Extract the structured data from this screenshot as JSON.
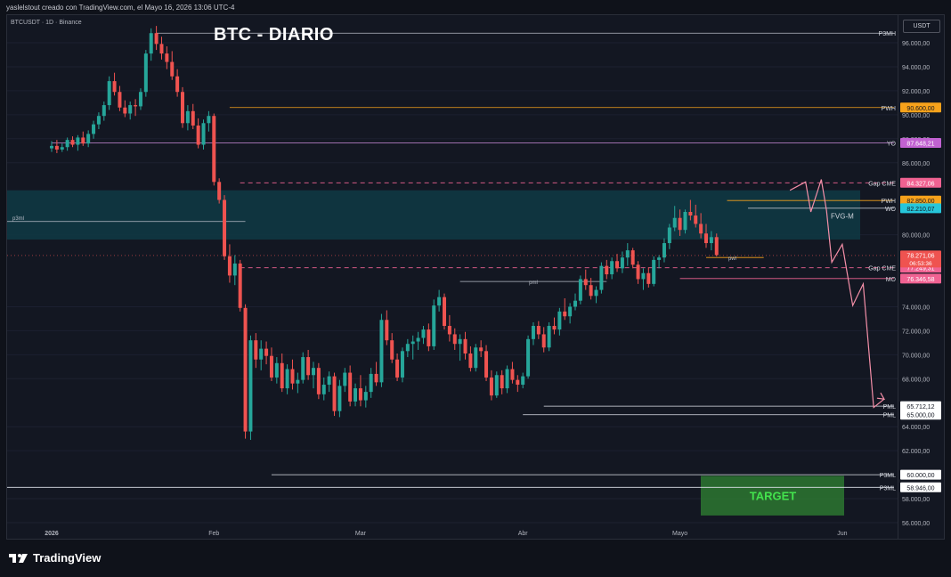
{
  "header": {
    "text": "yaslelstout creado con TradingView.com, el Mayo 16, 2026 13:06 UTC-4"
  },
  "symbol": "BTCUSDT · 1D · Binance",
  "title": "BTC - DIARIO",
  "currency": "USDT",
  "footer": {
    "brand": "TradingView"
  },
  "colors": {
    "up": "#26a69a",
    "down": "#ef5350",
    "background": "#131722",
    "fvg_zone": "#0f3a44",
    "target_zone": "#2e7d32"
  },
  "chart_data": {
    "type": "candlestick",
    "title": "BTC - DIARIO",
    "ylim": [
      55000,
      97500
    ],
    "y_ticks": [
      "96.000,00",
      "94.000,00",
      "92.000,00",
      "90.000,00",
      "88.000,00",
      "86.000,00",
      "80.000,00",
      "74.000,00",
      "72.000,00",
      "70.000,00",
      "68.000,00",
      "64.000,00",
      "62.000,00",
      "58.000,00",
      "56.000,00"
    ],
    "x_ticks": [
      {
        "label": "2026",
        "day": 1
      },
      {
        "label": "Feb",
        "day": 32
      },
      {
        "label": "Mar",
        "day": 60
      },
      {
        "label": "Abr",
        "day": 91
      },
      {
        "label": "Mayo",
        "day": 121
      },
      {
        "label": "Jun",
        "day": 152
      }
    ],
    "candles_ohlc_from_day_1": [
      [
        87200,
        87800,
        86900,
        87400
      ],
      [
        87400,
        87900,
        86800,
        87100
      ],
      [
        87100,
        87600,
        86900,
        87300
      ],
      [
        87300,
        88100,
        87000,
        87900
      ],
      [
        87900,
        88200,
        87300,
        87500
      ],
      [
        87500,
        88300,
        87000,
        88100
      ],
      [
        88100,
        88600,
        87400,
        87600
      ],
      [
        87600,
        88700,
        87300,
        88400
      ],
      [
        88400,
        89500,
        88000,
        89200
      ],
      [
        89200,
        90200,
        88800,
        89900
      ],
      [
        89900,
        91100,
        89500,
        90800
      ],
      [
        90800,
        93200,
        90400,
        92800
      ],
      [
        92800,
        93500,
        91600,
        91900
      ],
      [
        91900,
        92400,
        90300,
        90600
      ],
      [
        90600,
        91200,
        89800,
        90100
      ],
      [
        90100,
        91100,
        89600,
        90800
      ],
      [
        90800,
        91300,
        89900,
        90700
      ],
      [
        90700,
        92200,
        90400,
        91900
      ],
      [
        91900,
        95400,
        91500,
        95100
      ],
      [
        95100,
        97200,
        94500,
        96800
      ],
      [
        96800,
        97400,
        95400,
        95900
      ],
      [
        95900,
        96500,
        94600,
        95100
      ],
      [
        95100,
        95700,
        93800,
        94400
      ],
      [
        94400,
        95300,
        92900,
        93200
      ],
      [
        93200,
        93800,
        91500,
        91900
      ],
      [
        91900,
        92300,
        88900,
        89300
      ],
      [
        89300,
        90800,
        88700,
        90300
      ],
      [
        90300,
        90900,
        88800,
        89100
      ],
      [
        89100,
        89700,
        87200,
        87500
      ],
      [
        87500,
        89600,
        87100,
        89300
      ],
      [
        89300,
        90300,
        88600,
        89900
      ],
      [
        89900,
        90100,
        84100,
        84400
      ],
      [
        84400,
        84700,
        82600,
        82900
      ],
      [
        82900,
        83300,
        77900,
        78200
      ],
      [
        78200,
        79200,
        76000,
        76600
      ],
      [
        76600,
        78300,
        75800,
        77600
      ],
      [
        77600,
        77900,
        73600,
        73900
      ],
      [
        73900,
        74200,
        63000,
        63600
      ],
      [
        63600,
        71600,
        62900,
        71200
      ],
      [
        71200,
        71800,
        68900,
        69600
      ],
      [
        69600,
        71200,
        68700,
        70500
      ],
      [
        70500,
        71100,
        69200,
        69900
      ],
      [
        69900,
        70600,
        67800,
        68100
      ],
      [
        68100,
        69800,
        67600,
        69300
      ],
      [
        69300,
        70100,
        66900,
        67200
      ],
      [
        67200,
        69200,
        66700,
        68800
      ],
      [
        68800,
        69600,
        67100,
        67600
      ],
      [
        67600,
        68500,
        66800,
        67900
      ],
      [
        67900,
        70200,
        67600,
        69800
      ],
      [
        69800,
        70400,
        67900,
        68300
      ],
      [
        68300,
        69400,
        67200,
        68900
      ],
      [
        68900,
        69300,
        66300,
        66700
      ],
      [
        66700,
        68100,
        66200,
        67500
      ],
      [
        67500,
        68600,
        66900,
        68200
      ],
      [
        68200,
        68500,
        64900,
        65300
      ],
      [
        65300,
        67900,
        64800,
        67400
      ],
      [
        67400,
        68900,
        66900,
        68500
      ],
      [
        68500,
        69100,
        65700,
        66100
      ],
      [
        66100,
        67600,
        65700,
        67200
      ],
      [
        67200,
        68300,
        65700,
        66200
      ],
      [
        66200,
        67400,
        65600,
        66900
      ],
      [
        66900,
        68900,
        66400,
        68400
      ],
      [
        68400,
        69400,
        67400,
        67700
      ],
      [
        67700,
        73400,
        67300,
        72900
      ],
      [
        72900,
        73700,
        70800,
        71200
      ],
      [
        71200,
        71800,
        69300,
        69600
      ],
      [
        69600,
        70100,
        67800,
        68100
      ],
      [
        68100,
        70600,
        67700,
        70300
      ],
      [
        70300,
        71300,
        69800,
        70900
      ],
      [
        70900,
        71600,
        69600,
        71100
      ],
      [
        71100,
        71900,
        70400,
        71400
      ],
      [
        71400,
        72400,
        70900,
        72100
      ],
      [
        72100,
        72600,
        70300,
        70700
      ],
      [
        70700,
        74600,
        70400,
        74100
      ],
      [
        74100,
        75400,
        73600,
        74800
      ],
      [
        74800,
        75100,
        72100,
        72400
      ],
      [
        72400,
        73300,
        71100,
        71700
      ],
      [
        71700,
        72200,
        70400,
        70900
      ],
      [
        70900,
        71700,
        69500,
        71300
      ],
      [
        71300,
        71900,
        69600,
        70100
      ],
      [
        70100,
        70700,
        68600,
        68900
      ],
      [
        68900,
        70900,
        68600,
        70600
      ],
      [
        70600,
        71200,
        69800,
        70300
      ],
      [
        70300,
        70800,
        67800,
        68100
      ],
      [
        68100,
        68700,
        66200,
        66600
      ],
      [
        66600,
        68600,
        66400,
        68300
      ],
      [
        68300,
        68700,
        66700,
        67200
      ],
      [
        67200,
        69100,
        66800,
        68800
      ],
      [
        68800,
        69400,
        67600,
        67900
      ],
      [
        67900,
        68300,
        66900,
        67500
      ],
      [
        67500,
        68500,
        67200,
        68200
      ],
      [
        68200,
        71600,
        68000,
        71300
      ],
      [
        71300,
        72700,
        70800,
        72400
      ],
      [
        72400,
        72800,
        71300,
        71700
      ],
      [
        71700,
        72300,
        70200,
        70600
      ],
      [
        70600,
        72700,
        70300,
        72400
      ],
      [
        72400,
        73100,
        71700,
        72100
      ],
      [
        72100,
        73900,
        71600,
        73600
      ],
      [
        73600,
        74700,
        72900,
        73200
      ],
      [
        73200,
        74300,
        72600,
        74000
      ],
      [
        74000,
        75100,
        73700,
        74500
      ],
      [
        74500,
        76600,
        74200,
        76300
      ],
      [
        76300,
        77100,
        75400,
        75800
      ],
      [
        75800,
        76400,
        74600,
        74900
      ],
      [
        74900,
        75700,
        74300,
        75400
      ],
      [
        75400,
        77700,
        75100,
        77400
      ],
      [
        77400,
        77900,
        76300,
        76700
      ],
      [
        76700,
        78100,
        76300,
        77800
      ],
      [
        77800,
        78400,
        76900,
        77200
      ],
      [
        77200,
        78600,
        76800,
        78100
      ],
      [
        78100,
        79300,
        77400,
        78700
      ],
      [
        78700,
        78900,
        77200,
        77500
      ],
      [
        77500,
        77800,
        75900,
        76300
      ],
      [
        76300,
        77200,
        75400,
        76800
      ],
      [
        76800,
        77300,
        75600,
        75900
      ],
      [
        75900,
        78200,
        75700,
        77900
      ],
      [
        77900,
        78300,
        77200,
        78100
      ],
      [
        78100,
        79700,
        77700,
        79300
      ],
      [
        79300,
        80900,
        78800,
        80600
      ],
      [
        80600,
        82400,
        80300,
        81400
      ],
      [
        81400,
        82100,
        79900,
        80400
      ],
      [
        80400,
        82100,
        80100,
        81900
      ],
      [
        81900,
        82900,
        81200,
        81600
      ],
      [
        81600,
        82500,
        80600,
        80900
      ],
      [
        80900,
        81800,
        79700,
        80100
      ],
      [
        80100,
        80900,
        78900,
        79300
      ],
      [
        79300,
        80300,
        78700,
        79800
      ],
      [
        79800,
        80100,
        78200,
        78300
      ]
    ],
    "levels": [
      {
        "label": "P3MH",
        "value": 96800
      },
      {
        "label": "PWH",
        "value": 90600
      },
      {
        "label": "YO",
        "value": 87648.21
      },
      {
        "label": "Gap CME",
        "value": 84327.06
      },
      {
        "label": "PWH",
        "value": 82850
      },
      {
        "label": "WO",
        "value": 82210.07
      },
      {
        "label": "Gap CME",
        "value": 77249.31
      },
      {
        "label": "MO",
        "value": 76346.58
      },
      {
        "label": "PML",
        "value": 65712.12
      },
      {
        "label": "PML",
        "value": 65000
      },
      {
        "label": "P3ML",
        "value": 60000
      },
      {
        "label": "P3ML",
        "value": 58946
      }
    ],
    "price_tags": [
      {
        "text": "90.600,00",
        "value": 90600,
        "color": "#f7a21b"
      },
      {
        "text": "87.648,21",
        "value": 87648.21,
        "color": "#c162d1"
      },
      {
        "text": "84.327,06",
        "value": 84327.06,
        "color": "#f06292"
      },
      {
        "text": "82.850,00",
        "value": 82850,
        "color": "#f7a21b"
      },
      {
        "text": "82.210,07",
        "value": 82210.07,
        "color": "#26c6da"
      },
      {
        "text": "77.249,31",
        "value": 77249.31,
        "color": "#f06292"
      },
      {
        "text": "76.346,58",
        "value": 76346.58,
        "color": "#f06292"
      },
      {
        "text": "65.712,12",
        "value": 65712.12,
        "color": "#ffffff"
      },
      {
        "text": "65.000,00",
        "value": 65000,
        "color": "#ffffff"
      },
      {
        "text": "60.000,00",
        "value": 60000,
        "color": "#ffffff"
      },
      {
        "text": "58.946,00",
        "value": 58946,
        "color": "#ffffff"
      }
    ],
    "last_price": {
      "text": "78.271,06",
      "countdown": "06:53:36",
      "value": 78271.06
    },
    "annotations": {
      "fvg": "FVG-M",
      "fvg_range": [
        79600,
        83700
      ],
      "p3ml_line": "p3ml",
      "p3ml_value": 81100,
      "pml_label": "pml",
      "pml_value": 76100,
      "pwl_label": "pwl",
      "pwl_value": 78100,
      "target": "TARGET",
      "target_range": [
        56600,
        59900
      ],
      "projection": [
        {
          "day": 142,
          "price": 83700
        },
        {
          "day": 145,
          "price": 84400
        },
        {
          "day": 146,
          "price": 81900
        },
        {
          "day": 148,
          "price": 84600
        },
        {
          "day": 149,
          "price": 82000
        },
        {
          "day": 150,
          "price": 77700
        },
        {
          "day": 152,
          "price": 79200
        },
        {
          "day": 154,
          "price": 74100
        },
        {
          "day": 156,
          "price": 75900
        },
        {
          "day": 158,
          "price": 65600
        },
        {
          "day": 160,
          "price": 66300
        }
      ]
    }
  }
}
